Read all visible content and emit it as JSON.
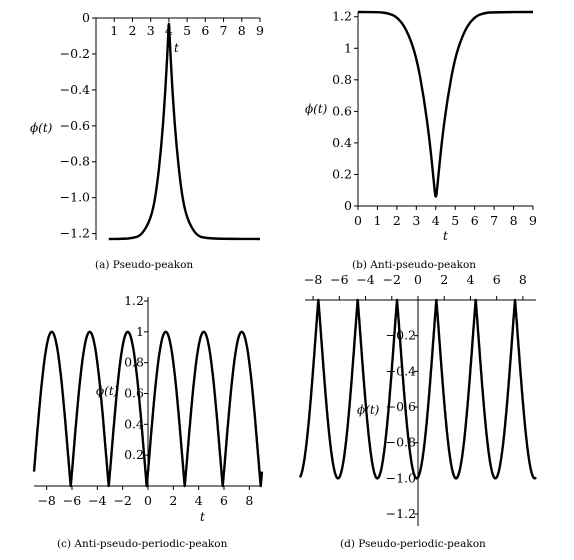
{
  "chart_data": [
    {
      "type": "line",
      "xlim": [
        0,
        9
      ],
      "ylim": [
        -1.23,
        0
      ],
      "xticks": [
        1,
        2,
        3,
        4,
        5,
        6,
        7,
        8,
        9
      ],
      "yticks": [
        0,
        -0.2,
        -0.4,
        -0.6,
        -0.8,
        -1.0,
        -1.2
      ],
      "xtick_labels": [
        "1",
        "2",
        "3",
        "4",
        "5",
        "6",
        "7",
        "8",
        "9"
      ],
      "ytick_labels": [
        "0",
        "−0.2",
        "−0.4",
        "−0.6",
        "−0.8",
        "−1.0",
        "−1.2"
      ],
      "xlabel": "t",
      "ylabel": "ϕ(t)",
      "caption": "(a)  Pseudo-peakon",
      "series": [
        {
          "points": [
            [
              0.7,
              -1.23
            ],
            [
              1.5,
              -1.229
            ],
            [
              2.0,
              -1.225
            ],
            [
              2.5,
              -1.21
            ],
            [
              3.0,
              -1.12
            ],
            [
              3.3,
              -0.98
            ],
            [
              3.6,
              -0.7
            ],
            [
              3.8,
              -0.42
            ],
            [
              3.95,
              -0.13
            ],
            [
              4.0,
              0
            ],
            [
              4.05,
              -0.13
            ],
            [
              4.2,
              -0.42
            ],
            [
              4.4,
              -0.7
            ],
            [
              4.7,
              -0.98
            ],
            [
              5.0,
              -1.12
            ],
            [
              5.5,
              -1.21
            ],
            [
              6.0,
              -1.225
            ],
            [
              7.0,
              -1.229
            ],
            [
              9.0,
              -1.23
            ]
          ]
        }
      ]
    },
    {
      "type": "line",
      "xlim": [
        0,
        9
      ],
      "ylim": [
        0,
        1.23
      ],
      "xticks": [
        0,
        1,
        2,
        3,
        4,
        5,
        6,
        7,
        8,
        9
      ],
      "yticks": [
        0,
        0.2,
        0.4,
        0.6,
        0.8,
        1.0,
        1.2
      ],
      "xtick_labels": [
        "0",
        "1",
        "2",
        "3",
        "4",
        "5",
        "6",
        "7",
        "8",
        "9"
      ],
      "ytick_labels": [
        "0",
        "0.2",
        "0.4",
        "0.6",
        "0.8",
        "1",
        "1.2"
      ],
      "xlabel": "t",
      "ylabel": "ϕ(t)",
      "caption": "(b)  Anti-pseudo-peakon",
      "series": [
        {
          "points": [
            [
              0,
              1.23
            ],
            [
              1.0,
              1.229
            ],
            [
              1.5,
              1.225
            ],
            [
              2.0,
              1.2
            ],
            [
              2.5,
              1.12
            ],
            [
              3.0,
              0.95
            ],
            [
              3.4,
              0.68
            ],
            [
              3.7,
              0.4
            ],
            [
              3.9,
              0.15
            ],
            [
              4.0,
              0.03
            ],
            [
              4.1,
              0.15
            ],
            [
              4.3,
              0.4
            ],
            [
              4.6,
              0.68
            ],
            [
              5.0,
              0.95
            ],
            [
              5.5,
              1.12
            ],
            [
              6.0,
              1.2
            ],
            [
              6.5,
              1.225
            ],
            [
              7.0,
              1.229
            ],
            [
              9.0,
              1.23
            ]
          ]
        }
      ]
    },
    {
      "type": "line",
      "xlim": [
        -9,
        9
      ],
      "ylim": [
        0,
        1.2
      ],
      "xticks": [
        -8,
        -6,
        -4,
        -2,
        0,
        2,
        4,
        6,
        8
      ],
      "yticks": [
        0.2,
        0.4,
        0.6,
        0.8,
        1.0,
        1.2
      ],
      "xtick_labels": [
        "−8",
        "−6",
        "−4",
        "−2",
        "0",
        "2",
        "4",
        "6",
        "8"
      ],
      "ytick_labels": [
        "0.2",
        "0.4",
        "0.6",
        "0.8",
        "1",
        "1.2"
      ],
      "xlabel": "t",
      "ylabel": "ϕ(t)",
      "caption": "(c)  Anti-pseudo-periodic-peakon",
      "series": [
        {
          "period": 3.0,
          "phase": -0.1,
          "amplitude_max": 1.0,
          "amplitude_min": 0.0,
          "x_range": [
            -9,
            9
          ]
        }
      ]
    },
    {
      "type": "line",
      "xlim": [
        -9,
        9
      ],
      "ylim": [
        -1.25,
        0
      ],
      "xticks": [
        -8,
        -6,
        -4,
        -2,
        0,
        2,
        4,
        6,
        8
      ],
      "yticks": [
        -0.2,
        -0.4,
        -0.6,
        -0.8,
        -1.0,
        -1.2
      ],
      "xtick_labels": [
        "−8",
        "−6",
        "−4",
        "−2",
        "0",
        "2",
        "4",
        "6",
        "8"
      ],
      "ytick_labels": [
        "−0.2",
        "−0.4",
        "−0.6",
        "−0.8",
        "−1.0",
        "−1.2"
      ],
      "xlabel": "",
      "ylabel": "ϕ(t)",
      "caption": "(d)  Pseudo-periodic-peakon",
      "series": [
        {
          "period": 3.0,
          "phase": 1.4,
          "amplitude_max": 0.0,
          "amplitude_min": -1.0,
          "x_range": [
            -9,
            9
          ]
        }
      ]
    }
  ]
}
